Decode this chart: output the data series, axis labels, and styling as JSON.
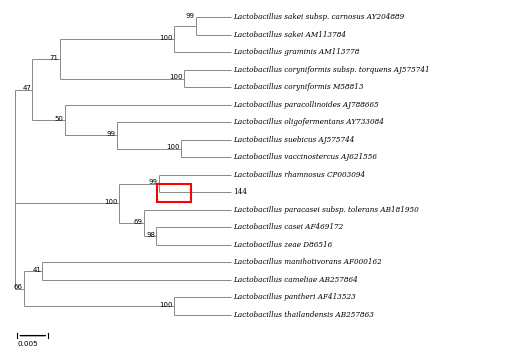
{
  "background_color": "#ffffff",
  "line_color": "#888888",
  "text_color": "#000000",
  "taxa": [
    "Lactobacillus sakei subsp. carnosus AY204889",
    "Lactobacillus sakei AM113784",
    "Lactobacillus graminis AM113778",
    "Lactobacillus coryniformis subsp. torquens AJ575741",
    "Lactobacillus coryniformis M58813",
    "Lactobacillus paracollinoides AJ788665",
    "Lactobacillus oligofermentans AY733084",
    "Lactobacillus suebicus AJ575744",
    "Lactobacillus vaccinostercus AJ621556",
    "Lactobacillus rhamnosus CP003094",
    "144",
    "Lactobacillus paracasei subsp. tolerans AB181950",
    "Lactobacillus casei AF469172",
    "Lactobacillus zeae D86516",
    "Lactobacillus manihotivorans AF000162",
    "Lactobacillus cameliae AB257864",
    "Lactobacillus pantheri AF413523",
    "Lactobacillus thailandensis AB257863"
  ],
  "figsize": [
    5.06,
    3.53
  ],
  "dpi": 100
}
